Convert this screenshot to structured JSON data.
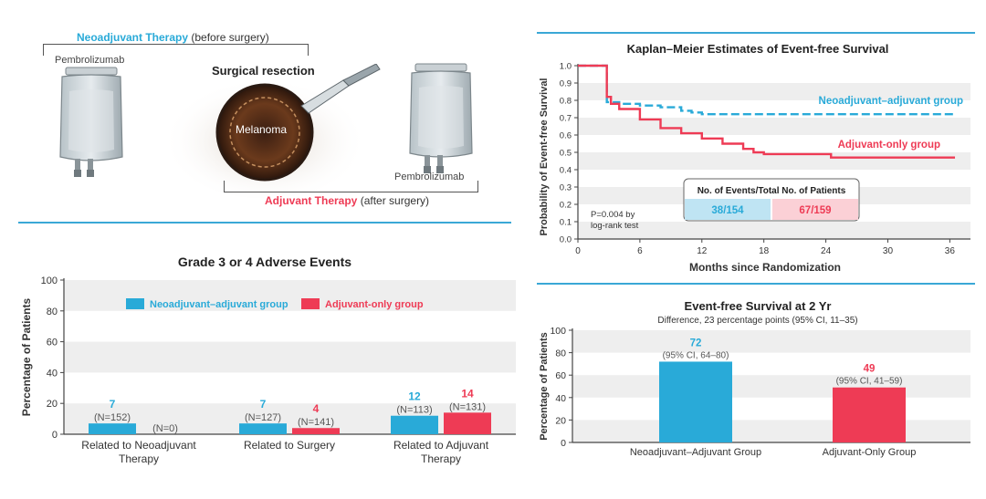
{
  "colors": {
    "neoadjuvant": "#29aad8",
    "adjuvant": "#ee3b55",
    "grid_band": "#eeeeee",
    "divider": "#3aa8d6",
    "axis": "#444444"
  },
  "schematic": {
    "neo_title": "Neoadjuvant Therapy",
    "neo_sub": "(before surgery)",
    "pembro_left": "Pembrolizumab",
    "surgery_title": "Surgical resection",
    "melanoma": "Melanoma",
    "pembro_right": "Pembrolizumab",
    "adj_title": "Adjuvant Therapy",
    "adj_sub": "(after surgery)"
  },
  "chart_data": [
    {
      "id": "adverse_events",
      "type": "bar",
      "title": "Grade 3 or 4 Adverse Events",
      "ylabel": "Percentage of Patients",
      "ylim": [
        0,
        100
      ],
      "yticks": [
        "0",
        "20",
        "40",
        "60",
        "80",
        "100"
      ],
      "categories": [
        "Related to Neoadjuvant Therapy",
        "Related to Surgery",
        "Related to Adjuvant Therapy"
      ],
      "category_lines": [
        [
          "Related to Neoadjuvant",
          "Therapy"
        ],
        [
          "Related to Surgery"
        ],
        [
          "Related to Adjuvant",
          "Therapy"
        ]
      ],
      "series": [
        {
          "name": "Neoadjuvant–adjuvant group",
          "values": [
            7,
            7,
            12
          ],
          "value_labels": [
            "7",
            "7",
            "12"
          ],
          "n_labels": [
            "(N=152)",
            "(N=127)",
            "(N=113)"
          ]
        },
        {
          "name": "Adjuvant-only group",
          "values": [
            0,
            4,
            14
          ],
          "value_labels": [
            "",
            "4",
            "14"
          ],
          "n_labels": [
            "(N=0)",
            "(N=141)",
            "(N=131)"
          ]
        }
      ],
      "legend_position": "top"
    },
    {
      "id": "kaplan_meier",
      "type": "line",
      "title": "Kaplan–Meier Estimates of Event-free Survival",
      "xlabel": "Months since Randomization",
      "ylabel": "Probability of Event-free Survival",
      "xlim": [
        0,
        38
      ],
      "ylim": [
        0,
        1.0
      ],
      "xticks": [
        "0",
        "6",
        "12",
        "18",
        "24",
        "30",
        "36"
      ],
      "yticks": [
        "0.0",
        "0.1",
        "0.2",
        "0.3",
        "0.4",
        "0.5",
        "0.6",
        "0.7",
        "0.8",
        "0.9",
        "1.0"
      ],
      "series": [
        {
          "name": "Neoadjuvant–adjuvant group",
          "style": "dashed",
          "x": [
            0,
            2.8,
            2.8,
            4,
            6,
            8,
            10,
            11,
            12,
            14,
            18,
            24,
            30,
            36.5
          ],
          "y": [
            1.0,
            1.0,
            0.79,
            0.78,
            0.77,
            0.76,
            0.74,
            0.73,
            0.72,
            0.72,
            0.72,
            0.72,
            0.72,
            0.72
          ]
        },
        {
          "name": "Adjuvant-only group",
          "style": "solid",
          "x": [
            0,
            2.8,
            2.8,
            3.2,
            4,
            6,
            8,
            10,
            12,
            14,
            16,
            17,
            18,
            20,
            24,
            24.5,
            26,
            30,
            36.5
          ],
          "y": [
            1.0,
            1.0,
            0.82,
            0.78,
            0.75,
            0.69,
            0.64,
            0.61,
            0.58,
            0.55,
            0.52,
            0.5,
            0.49,
            0.49,
            0.49,
            0.47,
            0.47,
            0.47,
            0.47
          ]
        }
      ],
      "annotation": "P=0.004 by log-rank test",
      "annotation_lines": [
        "P=0.004 by",
        "log-rank test"
      ],
      "table_header": "No. of Events/Total No. of Patients",
      "table_values": [
        "38/154",
        "67/159"
      ]
    },
    {
      "id": "efs_2yr",
      "type": "bar",
      "title": "Event-free Survival at 2 Yr",
      "subtitle": "Difference, 23 percentage points (95% CI, 11–35)",
      "ylabel": "Percentage of Patients",
      "ylim": [
        0,
        100
      ],
      "yticks": [
        "0",
        "20",
        "40",
        "60",
        "80",
        "100"
      ],
      "categories": [
        "Neoadjuvant–Adjuvant Group",
        "Adjuvant-Only Group"
      ],
      "values": [
        72,
        49
      ],
      "value_labels": [
        "72",
        "49"
      ],
      "ci_labels": [
        "(95% CI, 64–80)",
        "(95% CI, 41–59)"
      ]
    }
  ]
}
